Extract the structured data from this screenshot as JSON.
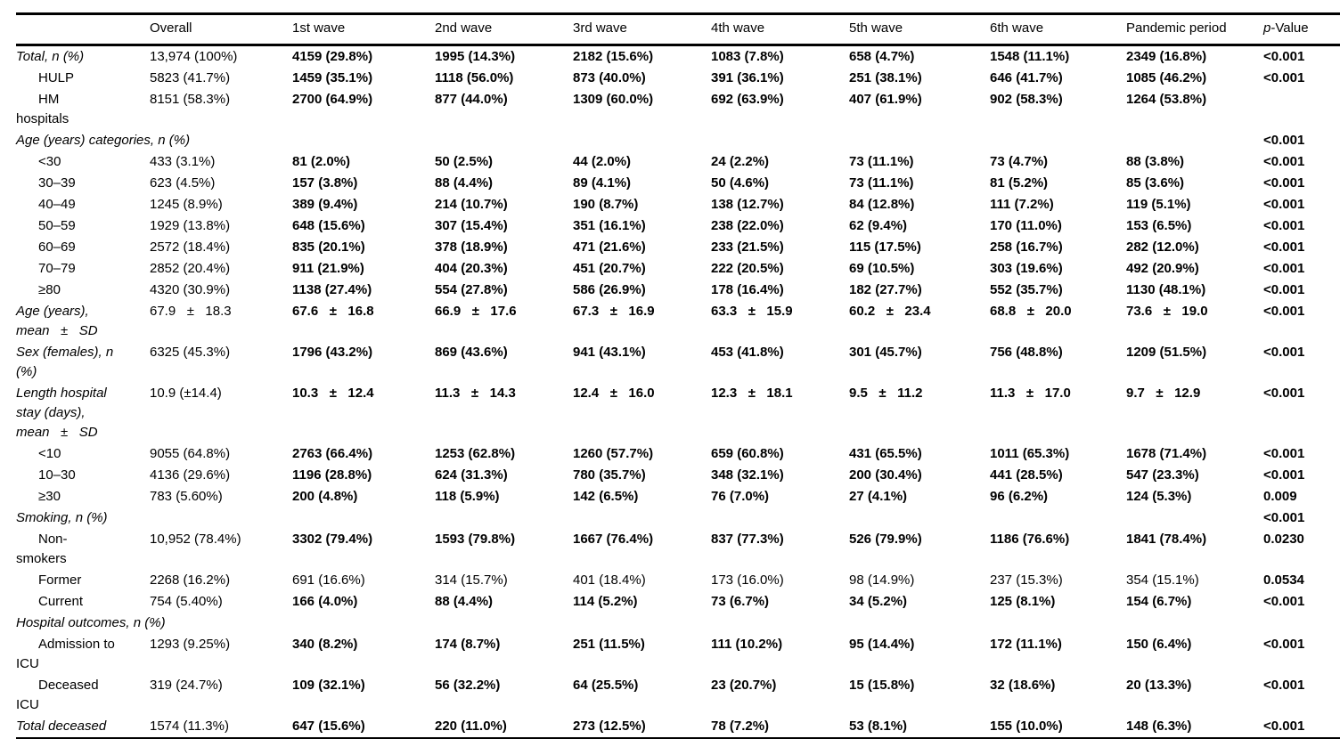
{
  "table": {
    "columns": [
      "Overall",
      "1st wave",
      "2nd wave",
      "3rd wave",
      "4th wave",
      "5th wave",
      "6th wave",
      "Pandemic period"
    ],
    "p_header": {
      "prefix": "p",
      "suffix": "-Value"
    },
    "rows": [
      {
        "label": "Total, n (%)",
        "style": "italic",
        "cells": [
          {
            "t": "13,974 (100%)",
            "b": false
          },
          {
            "t": "4159 (29.8%)",
            "b": true
          },
          {
            "t": "1995 (14.3%)",
            "b": true
          },
          {
            "t": "2182 (15.6%)",
            "b": true
          },
          {
            "t": "1083 (7.8%)",
            "b": true
          },
          {
            "t": "658 (4.7%)",
            "b": true
          },
          {
            "t": "1548 (11.1%)",
            "b": true
          },
          {
            "t": "2349 (16.8%)",
            "b": true
          }
        ],
        "p": {
          "t": "<0.001",
          "b": true
        }
      },
      {
        "label": "HULP",
        "style": "sub",
        "cells": [
          {
            "t": "5823 (41.7%)",
            "b": false
          },
          {
            "t": "1459 (35.1%)",
            "b": true
          },
          {
            "t": "1118 (56.0%)",
            "b": true
          },
          {
            "t": "873 (40.0%)",
            "b": true
          },
          {
            "t": "391 (36.1%)",
            "b": true
          },
          {
            "t": "251 (38.1%)",
            "b": true
          },
          {
            "t": "646 (41.7%)",
            "b": true
          },
          {
            "t": "1085 (46.2%)",
            "b": true
          }
        ],
        "p": {
          "t": "<0.001",
          "b": true
        }
      },
      {
        "label": "HM\nhospitals",
        "style": "sub",
        "cells": [
          {
            "t": "8151 (58.3%)",
            "b": false
          },
          {
            "t": "2700 (64.9%)",
            "b": true
          },
          {
            "t": "877 (44.0%)",
            "b": true
          },
          {
            "t": "1309 (60.0%)",
            "b": true
          },
          {
            "t": "692 (63.9%)",
            "b": true
          },
          {
            "t": "407 (61.9%)",
            "b": true
          },
          {
            "t": "902 (58.3%)",
            "b": true
          },
          {
            "t": "1264 (53.8%)",
            "b": true
          }
        ],
        "p": {
          "t": "",
          "b": false
        }
      },
      {
        "label": "Age (years) categories, n (%)",
        "style": "span",
        "cells": [],
        "p": {
          "t": "<0.001",
          "b": true
        }
      },
      {
        "label": "<30",
        "style": "sub",
        "cells": [
          {
            "t": "433 (3.1%)",
            "b": false
          },
          {
            "t": "81 (2.0%)",
            "b": true
          },
          {
            "t": "50 (2.5%)",
            "b": true
          },
          {
            "t": "44 (2.0%)",
            "b": true
          },
          {
            "t": "24 (2.2%)",
            "b": true
          },
          {
            "t": "73 (11.1%)",
            "b": true
          },
          {
            "t": "73 (4.7%)",
            "b": true
          },
          {
            "t": "88 (3.8%)",
            "b": true
          }
        ],
        "p": {
          "t": "<0.001",
          "b": true
        }
      },
      {
        "label": "30–39",
        "style": "sub",
        "cells": [
          {
            "t": "623 (4.5%)",
            "b": false
          },
          {
            "t": "157 (3.8%)",
            "b": true
          },
          {
            "t": "88 (4.4%)",
            "b": true
          },
          {
            "t": "89 (4.1%)",
            "b": true
          },
          {
            "t": "50 (4.6%)",
            "b": true
          },
          {
            "t": "73 (11.1%)",
            "b": true
          },
          {
            "t": "81 (5.2%)",
            "b": true
          },
          {
            "t": "85 (3.6%)",
            "b": true
          }
        ],
        "p": {
          "t": "<0.001",
          "b": true
        }
      },
      {
        "label": "40–49",
        "style": "sub",
        "cells": [
          {
            "t": "1245 (8.9%)",
            "b": false
          },
          {
            "t": "389 (9.4%)",
            "b": true
          },
          {
            "t": "214 (10.7%)",
            "b": true
          },
          {
            "t": "190 (8.7%)",
            "b": true
          },
          {
            "t": "138 (12.7%)",
            "b": true
          },
          {
            "t": "84 (12.8%)",
            "b": true
          },
          {
            "t": "111 (7.2%)",
            "b": true
          },
          {
            "t": "119 (5.1%)",
            "b": true
          }
        ],
        "p": {
          "t": "<0.001",
          "b": true
        }
      },
      {
        "label": "50–59",
        "style": "sub",
        "cells": [
          {
            "t": "1929 (13.8%)",
            "b": false
          },
          {
            "t": "648 (15.6%)",
            "b": true
          },
          {
            "t": "307 (15.4%)",
            "b": true
          },
          {
            "t": "351 (16.1%)",
            "b": true
          },
          {
            "t": "238 (22.0%)",
            "b": true
          },
          {
            "t": "62 (9.4%)",
            "b": true
          },
          {
            "t": "170 (11.0%)",
            "b": true
          },
          {
            "t": "153 (6.5%)",
            "b": true
          }
        ],
        "p": {
          "t": "<0.001",
          "b": true
        }
      },
      {
        "label": "60–69",
        "style": "sub",
        "cells": [
          {
            "t": "2572 (18.4%)",
            "b": false
          },
          {
            "t": "835 (20.1%)",
            "b": true
          },
          {
            "t": "378 (18.9%)",
            "b": true
          },
          {
            "t": "471 (21.6%)",
            "b": true
          },
          {
            "t": "233 (21.5%)",
            "b": true
          },
          {
            "t": "115 (17.5%)",
            "b": true
          },
          {
            "t": "258 (16.7%)",
            "b": true
          },
          {
            "t": "282 (12.0%)",
            "b": true
          }
        ],
        "p": {
          "t": "<0.001",
          "b": true
        }
      },
      {
        "label": "70–79",
        "style": "sub",
        "cells": [
          {
            "t": "2852 (20.4%)",
            "b": false
          },
          {
            "t": "911 (21.9%)",
            "b": true
          },
          {
            "t": "404 (20.3%)",
            "b": true
          },
          {
            "t": "451 (20.7%)",
            "b": true
          },
          {
            "t": "222 (20.5%)",
            "b": true
          },
          {
            "t": "69 (10.5%)",
            "b": true
          },
          {
            "t": "303 (19.6%)",
            "b": true
          },
          {
            "t": "492 (20.9%)",
            "b": true
          }
        ],
        "p": {
          "t": "<0.001",
          "b": true
        }
      },
      {
        "label": "≥80",
        "style": "sub",
        "cells": [
          {
            "t": "4320 (30.9%)",
            "b": false
          },
          {
            "t": "1138 (27.4%)",
            "b": true
          },
          {
            "t": "554 (27.8%)",
            "b": true
          },
          {
            "t": "586 (26.9%)",
            "b": true
          },
          {
            "t": "178 (16.4%)",
            "b": true
          },
          {
            "t": "182 (27.7%)",
            "b": true
          },
          {
            "t": "552 (35.7%)",
            "b": true
          },
          {
            "t": "1130 (48.1%)",
            "b": true
          }
        ],
        "p": {
          "t": "<0.001",
          "b": true
        }
      },
      {
        "label": "Age (years),\nmean   ±   SD",
        "style": "italic",
        "cells": [
          {
            "t": "67.9   ±   18.3",
            "b": false
          },
          {
            "t": "67.6   ±   16.8",
            "b": true
          },
          {
            "t": "66.9   ±   17.6",
            "b": true
          },
          {
            "t": "67.3   ±   16.9",
            "b": true
          },
          {
            "t": "63.3   ±   15.9",
            "b": true
          },
          {
            "t": "60.2   ±   23.4",
            "b": true
          },
          {
            "t": "68.8   ±   20.0",
            "b": true
          },
          {
            "t": "73.6   ±   19.0",
            "b": true
          }
        ],
        "p": {
          "t": "<0.001",
          "b": true
        }
      },
      {
        "label": "Sex (females), n\n(%)",
        "style": "italic",
        "cells": [
          {
            "t": "6325 (45.3%)",
            "b": false
          },
          {
            "t": "1796 (43.2%)",
            "b": true
          },
          {
            "t": "869 (43.6%)",
            "b": true
          },
          {
            "t": "941 (43.1%)",
            "b": true
          },
          {
            "t": "453 (41.8%)",
            "b": true
          },
          {
            "t": "301 (45.7%)",
            "b": true
          },
          {
            "t": "756 (48.8%)",
            "b": true
          },
          {
            "t": "1209 (51.5%)",
            "b": true
          }
        ],
        "p": {
          "t": "<0.001",
          "b": true
        }
      },
      {
        "label": "Length hospital\nstay (days),\nmean   ±   SD",
        "style": "italic",
        "cells": [
          {
            "t": "10.9 (±14.4)",
            "b": false
          },
          {
            "t": "10.3   ±   12.4",
            "b": true
          },
          {
            "t": "11.3   ±   14.3",
            "b": true
          },
          {
            "t": "12.4   ±   16.0",
            "b": true
          },
          {
            "t": "12.3   ±   18.1",
            "b": true
          },
          {
            "t": "9.5   ±   11.2",
            "b": true
          },
          {
            "t": "11.3   ±   17.0",
            "b": true
          },
          {
            "t": "9.7   ±   12.9",
            "b": true
          }
        ],
        "p": {
          "t": "<0.001",
          "b": true
        }
      },
      {
        "label": "<10",
        "style": "sub",
        "cells": [
          {
            "t": "9055 (64.8%)",
            "b": false
          },
          {
            "t": "2763 (66.4%)",
            "b": true
          },
          {
            "t": "1253 (62.8%)",
            "b": true
          },
          {
            "t": "1260 (57.7%)",
            "b": true
          },
          {
            "t": "659 (60.8%)",
            "b": true
          },
          {
            "t": "431 (65.5%)",
            "b": true
          },
          {
            "t": "1011 (65.3%)",
            "b": true
          },
          {
            "t": "1678 (71.4%)",
            "b": true
          }
        ],
        "p": {
          "t": "<0.001",
          "b": true
        }
      },
      {
        "label": "10–30",
        "style": "sub",
        "cells": [
          {
            "t": "4136 (29.6%)",
            "b": false
          },
          {
            "t": "1196 (28.8%)",
            "b": true
          },
          {
            "t": "624 (31.3%)",
            "b": true
          },
          {
            "t": "780 (35.7%)",
            "b": true
          },
          {
            "t": "348 (32.1%)",
            "b": true
          },
          {
            "t": "200 (30.4%)",
            "b": true
          },
          {
            "t": "441 (28.5%)",
            "b": true
          },
          {
            "t": "547 (23.3%)",
            "b": true
          }
        ],
        "p": {
          "t": "<0.001",
          "b": true
        }
      },
      {
        "label": "≥30",
        "style": "sub",
        "cells": [
          {
            "t": "783 (5.60%)",
            "b": false
          },
          {
            "t": "200 (4.8%)",
            "b": true
          },
          {
            "t": "118 (5.9%)",
            "b": true
          },
          {
            "t": "142 (6.5%)",
            "b": true
          },
          {
            "t": "76 (7.0%)",
            "b": true
          },
          {
            "t": "27 (4.1%)",
            "b": true
          },
          {
            "t": "96 (6.2%)",
            "b": true
          },
          {
            "t": "124 (5.3%)",
            "b": true
          }
        ],
        "p": {
          "t": "0.009",
          "b": true
        }
      },
      {
        "label": "Smoking, n (%)",
        "style": "span",
        "cells": [],
        "p": {
          "t": "<0.001",
          "b": true
        }
      },
      {
        "label": "Non-\nsmokers",
        "style": "sub",
        "cells": [
          {
            "t": "10,952 (78.4%)",
            "b": false
          },
          {
            "t": "3302 (79.4%)",
            "b": true
          },
          {
            "t": "1593 (79.8%)",
            "b": true
          },
          {
            "t": "1667 (76.4%)",
            "b": true
          },
          {
            "t": "837 (77.3%)",
            "b": true
          },
          {
            "t": "526 (79.9%)",
            "b": true
          },
          {
            "t": "1186 (76.6%)",
            "b": true
          },
          {
            "t": "1841 (78.4%)",
            "b": true
          }
        ],
        "p": {
          "t": "0.0230",
          "b": true
        }
      },
      {
        "label": "Former",
        "style": "sub",
        "cells": [
          {
            "t": "2268 (16.2%)",
            "b": false
          },
          {
            "t": "691 (16.6%)",
            "b": false
          },
          {
            "t": "314 (15.7%)",
            "b": false
          },
          {
            "t": "401 (18.4%)",
            "b": false
          },
          {
            "t": "173 (16.0%)",
            "b": false
          },
          {
            "t": "98 (14.9%)",
            "b": false
          },
          {
            "t": "237 (15.3%)",
            "b": false
          },
          {
            "t": "354 (15.1%)",
            "b": false
          }
        ],
        "p": {
          "t": "0.0534",
          "b": true
        }
      },
      {
        "label": "Current",
        "style": "sub",
        "cells": [
          {
            "t": "754 (5.40%)",
            "b": false
          },
          {
            "t": "166 (4.0%)",
            "b": true
          },
          {
            "t": "88 (4.4%)",
            "b": true
          },
          {
            "t": "114 (5.2%)",
            "b": true
          },
          {
            "t": "73 (6.7%)",
            "b": true
          },
          {
            "t": "34 (5.2%)",
            "b": true
          },
          {
            "t": "125 (8.1%)",
            "b": true
          },
          {
            "t": "154 (6.7%)",
            "b": true
          }
        ],
        "p": {
          "t": "<0.001",
          "b": true
        }
      },
      {
        "label": "Hospital outcomes, n (%)",
        "style": "span",
        "cells": [],
        "p": {
          "t": "",
          "b": false
        }
      },
      {
        "label": "Admission to\nICU",
        "style": "sub",
        "cells": [
          {
            "t": "1293 (9.25%)",
            "b": false
          },
          {
            "t": "340 (8.2%)",
            "b": true
          },
          {
            "t": "174 (8.7%)",
            "b": true
          },
          {
            "t": "251 (11.5%)",
            "b": true
          },
          {
            "t": "111 (10.2%)",
            "b": true
          },
          {
            "t": "95 (14.4%)",
            "b": true
          },
          {
            "t": "172 (11.1%)",
            "b": true
          },
          {
            "t": "150 (6.4%)",
            "b": true
          }
        ],
        "p": {
          "t": "<0.001",
          "b": true
        }
      },
      {
        "label": "Deceased\nICU",
        "style": "sub",
        "cells": [
          {
            "t": "319 (24.7%)",
            "b": false
          },
          {
            "t": "109 (32.1%)",
            "b": true
          },
          {
            "t": "56 (32.2%)",
            "b": true
          },
          {
            "t": "64 (25.5%)",
            "b": true
          },
          {
            "t": "23 (20.7%)",
            "b": true
          },
          {
            "t": "15 (15.8%)",
            "b": true
          },
          {
            "t": "32 (18.6%)",
            "b": true
          },
          {
            "t": "20 (13.3%)",
            "b": true
          }
        ],
        "p": {
          "t": "<0.001",
          "b": true
        }
      },
      {
        "label": "Total deceased",
        "style": "italic",
        "cells": [
          {
            "t": "1574 (11.3%)",
            "b": false
          },
          {
            "t": "647 (15.6%)",
            "b": true
          },
          {
            "t": "220 (11.0%)",
            "b": true
          },
          {
            "t": "273 (12.5%)",
            "b": true
          },
          {
            "t": "78 (7.2%)",
            "b": true
          },
          {
            "t": "53 (8.1%)",
            "b": true
          },
          {
            "t": "155 (10.0%)",
            "b": true
          },
          {
            "t": "148 (6.3%)",
            "b": true
          }
        ],
        "p": {
          "t": "<0.001",
          "b": true
        }
      }
    ]
  }
}
